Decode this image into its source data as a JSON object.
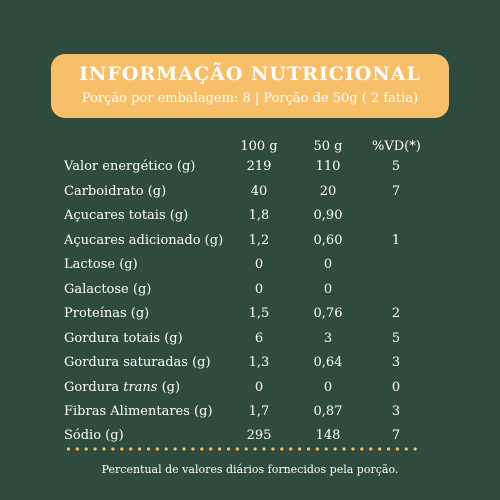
{
  "header": {
    "title": "INFORMAÇÃO NUTRICIONAL",
    "subtitle": "Porção por embalagem: 8 | Porção de 50g ( 2 fatia)"
  },
  "columns": {
    "c100": "100 g",
    "c50": "50 g",
    "cvd": "%VD(*)"
  },
  "rows": [
    {
      "name": "Valor energético  (g)",
      "v100": "219",
      "v50": "110",
      "vd": "5"
    },
    {
      "name": "Carboidrato  (g)",
      "v100": "40",
      "v50": "20",
      "vd": "7"
    },
    {
      "name": "Açucares totais  (g)",
      "v100": "1,8",
      "v50": "0,90",
      "vd": ""
    },
    {
      "name": "Açucares adicionado  (g)",
      "v100": "1,2",
      "v50": "0,60",
      "vd": "1"
    },
    {
      "name": "Lactose (g)",
      "v100": "0",
      "v50": "0",
      "vd": ""
    },
    {
      "name": "Galactose (g)",
      "v100": "0",
      "v50": "0",
      "vd": ""
    },
    {
      "name": "Proteínas  (g)",
      "v100": "1,5",
      "v50": "0,76",
      "vd": "2"
    },
    {
      "name": "Gordura totais (g)",
      "v100": "6",
      "v50": "3",
      "vd": "5"
    },
    {
      "name": "Gordura saturadas (g)",
      "v100": "1,3",
      "v50": "0,64",
      "vd": "3"
    },
    {
      "name_pre": "Gordura ",
      "name_em": "trans",
      "name_post": " (g)",
      "v100": "0",
      "v50": "0",
      "vd": "0"
    },
    {
      "name": "Fibras Alimentares (g)",
      "v100": "1,7",
      "v50": "0,87",
      "vd": "3"
    },
    {
      "name": "Sódio  (g)",
      "v100": "295",
      "v50": "148",
      "vd": "7"
    }
  ],
  "footer": "Percentual de valores diários fornecidos pela porção.",
  "colors": {
    "background": "#2f4b3d",
    "accent": "#f7bf6a",
    "text": "#ffffff"
  }
}
